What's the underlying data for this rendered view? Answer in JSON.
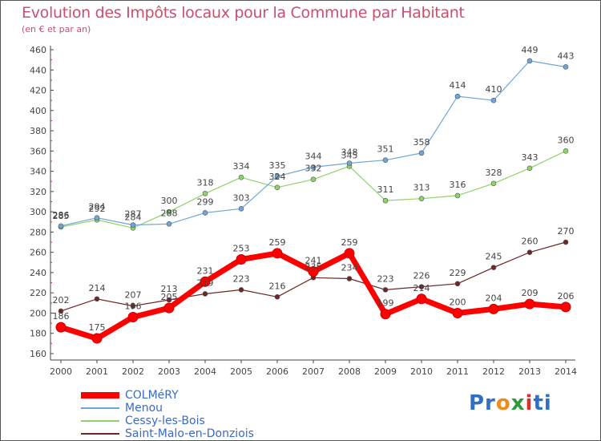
{
  "header": {
    "title": "Evolution des Impôts locaux pour la Commune par Habitant",
    "subtitle": "(en € et par an)"
  },
  "brand": {
    "parts": [
      "Pr",
      "o",
      "x",
      "i",
      "ti"
    ]
  },
  "chart_data": {
    "type": "line",
    "title": "Evolution des Impôts locaux pour la Commune par Habitant",
    "subtitle": "(en € et par an)",
    "x": [
      2000,
      2001,
      2002,
      2003,
      2004,
      2005,
      2006,
      2007,
      2008,
      2009,
      2010,
      2011,
      2012,
      2013,
      2014
    ],
    "ylim": [
      160,
      460
    ],
    "yticks": [
      160,
      180,
      200,
      220,
      240,
      260,
      280,
      300,
      320,
      340,
      360,
      380,
      400,
      420,
      440,
      460
    ],
    "grid": false,
    "legend_position": "bottom-left",
    "series": [
      {
        "name": "Saint-Malo-en-Donziois",
        "color": "#6e2626",
        "width": 1.2,
        "values": [
          202,
          214,
          207,
          213,
          219,
          223,
          216,
          235,
          234,
          223,
          226,
          229,
          245,
          260,
          270
        ],
        "labels": [
          "202",
          "214",
          "207",
          "213",
          "219",
          "223",
          "216",
          "235",
          "234",
          "223",
          "226",
          "229",
          "245",
          "260",
          "270"
        ]
      },
      {
        "name": "Cessy-les-Bois",
        "color": "#8fd26a",
        "width": 1.2,
        "values": [
          285,
          292,
          284,
          300,
          318,
          334,
          324,
          332,
          345,
          311,
          313,
          316,
          328,
          343,
          360
        ],
        "labels": [
          "285",
          "292",
          "284",
          "300",
          "318",
          "334",
          "324",
          "332",
          "345",
          "311",
          "313",
          "316",
          "328",
          "343",
          "360"
        ]
      },
      {
        "name": "Menou",
        "color": "#6fa6d6",
        "width": 1.2,
        "values": [
          286,
          294,
          287,
          288,
          299,
          303,
          335,
          344,
          348,
          351,
          358,
          414,
          410,
          449,
          443
        ],
        "labels": [
          "286",
          "294",
          "287",
          "288",
          "299",
          "303",
          "335",
          "344",
          "348",
          "351",
          "358",
          "414",
          "410",
          "449",
          "443"
        ]
      },
      {
        "name": "COLMéRY",
        "color": "#ff0000",
        "width": 7,
        "values": [
          186,
          175,
          196,
          205,
          231,
          253,
          259,
          241,
          259,
          199,
          214,
          200,
          204,
          209,
          206
        ],
        "labels": [
          "186",
          "175",
          "196",
          "205",
          "231",
          "253",
          "259",
          "241",
          "259",
          "199",
          "214",
          "200",
          "204",
          "209",
          "206"
        ]
      }
    ],
    "legend_order": [
      "COLMéRY",
      "Menou",
      "Cessy-les-Bois",
      "Saint-Malo-en-Donziois"
    ]
  }
}
